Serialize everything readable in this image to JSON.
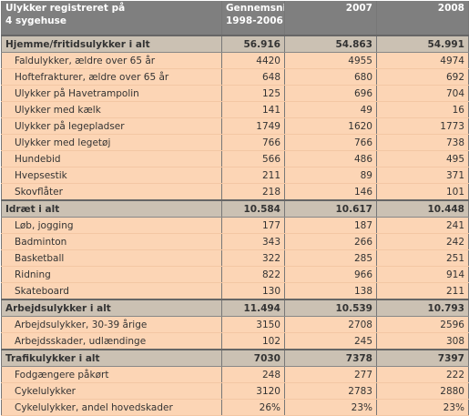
{
  "header": {
    "cells": [
      [
        "Ulykker registreret på",
        "4 sygehuse"
      ],
      [
        "Gennemsnit",
        "1998-2006"
      ],
      [
        "2007"
      ],
      [
        "2008"
      ]
    ]
  },
  "sections": [
    {
      "title": "Hjemme/fritidsulykker i alt",
      "values": [
        "56.916",
        "54.863",
        "54.991"
      ],
      "rows": [
        {
          "label": "Faldulykker, ældre over 65 år",
          "values": [
            "4420",
            "4955",
            "4974"
          ]
        },
        {
          "label": "Hoftefrakturer, ældre over 65 år",
          "values": [
            "648",
            "680",
            "692"
          ]
        },
        {
          "label": "Ulykker på Havetrampolin",
          "values": [
            "125",
            "696",
            "704"
          ]
        },
        {
          "label": "Ulykker med kælk",
          "values": [
            "141",
            "49",
            "16"
          ]
        },
        {
          "label": "Ulykker på legepladser",
          "values": [
            "1749",
            "1620",
            "1773"
          ]
        },
        {
          "label": "Ulykker med legetøj",
          "values": [
            "766",
            "766",
            "738"
          ]
        },
        {
          "label": "Hundebid",
          "values": [
            "566",
            "486",
            "495"
          ]
        },
        {
          "label": "Hvepsestik",
          "values": [
            "211",
            "89",
            "371"
          ]
        },
        {
          "label": "Skovflåter",
          "values": [
            "218",
            "146",
            "101"
          ]
        }
      ]
    },
    {
      "title": "Idræt i alt",
      "values": [
        "10.584",
        "10.617",
        "10.448"
      ],
      "rows": [
        {
          "label": "Løb, jogging",
          "values": [
            "177",
            "187",
            "241"
          ]
        },
        {
          "label": "Badminton",
          "values": [
            "343",
            "266",
            "242"
          ]
        },
        {
          "label": "Basketball",
          "values": [
            "322",
            "285",
            "251"
          ]
        },
        {
          "label": "Ridning",
          "values": [
            "822",
            "966",
            "914"
          ]
        },
        {
          "label": "Skateboard",
          "values": [
            "130",
            "138",
            "211"
          ]
        }
      ]
    },
    {
      "title": "Arbejdsulykker i alt",
      "values": [
        "11.494",
        "10.539",
        "10.793"
      ],
      "rows": [
        {
          "label": "Arbejdsulykker, 30-39 årige",
          "values": [
            "3150",
            "2708",
            "2596"
          ]
        },
        {
          "label": "Arbejdsskader, udlændinge",
          "values": [
            "102",
            "245",
            "308"
          ]
        }
      ]
    },
    {
      "title": "Trafikulykker i alt",
      "values": [
        "7030",
        "7378",
        "7397"
      ],
      "rows": [
        {
          "label": "Fodgængere påkørt",
          "values": [
            "248",
            "277",
            "222"
          ]
        },
        {
          "label": "Cykelulykker",
          "values": [
            "3120",
            "2783",
            "2880"
          ]
        },
        {
          "label": "Cykelulykker, andel hovedskader",
          "values": [
            "26%",
            "23%",
            "23%"
          ]
        }
      ]
    }
  ]
}
